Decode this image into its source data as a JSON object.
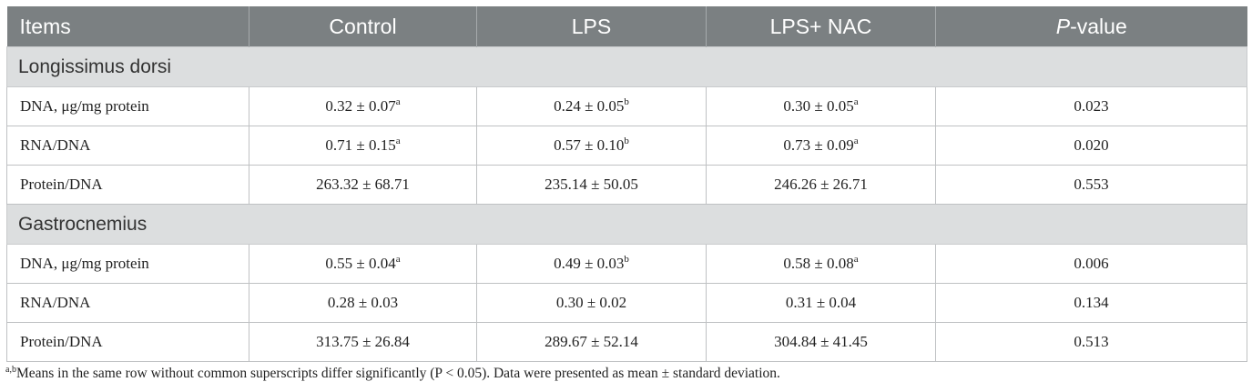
{
  "table": {
    "headers": [
      "Items",
      "Control",
      "LPS",
      "LPS+ NAC",
      "value"
    ],
    "pvalue_italic_prefix": "P",
    "pvalue_dash": "-",
    "sections": [
      {
        "title": "Longissimus dorsi",
        "rows": [
          {
            "item": "DNA, μg/mg protein",
            "control": "0.32 ± 0.07",
            "control_sup": "a",
            "lps": "0.24 ± 0.05",
            "lps_sup": "b",
            "lps_nac": "0.30 ± 0.05",
            "lps_nac_sup": "a",
            "p": "0.023"
          },
          {
            "item": "RNA/DNA",
            "control": "0.71 ± 0.15",
            "control_sup": "a",
            "lps": "0.57 ± 0.10",
            "lps_sup": "b",
            "lps_nac": "0.73 ± 0.09",
            "lps_nac_sup": "a",
            "p": "0.020"
          },
          {
            "item": "Protein/DNA",
            "control": "263.32 ± 68.71",
            "control_sup": "",
            "lps": "235.14 ± 50.05",
            "lps_sup": "",
            "lps_nac": "246.26 ± 26.71",
            "lps_nac_sup": "",
            "p": "0.553"
          }
        ]
      },
      {
        "title": "Gastrocnemius",
        "rows": [
          {
            "item": "DNA, μg/mg protein",
            "control": "0.55 ± 0.04",
            "control_sup": "a",
            "lps": "0.49 ± 0.03",
            "lps_sup": "b",
            "lps_nac": "0.58 ± 0.08",
            "lps_nac_sup": "a",
            "p": "0.006"
          },
          {
            "item": "RNA/DNA",
            "control": "0.28 ± 0.03",
            "control_sup": "",
            "lps": "0.30 ± 0.02",
            "lps_sup": "",
            "lps_nac": "0.31 ± 0.04",
            "lps_nac_sup": "",
            "p": "0.134"
          },
          {
            "item": "Protein/DNA",
            "control": "313.75 ± 26.84",
            "control_sup": "",
            "lps": "289.67 ± 52.14",
            "lps_sup": "",
            "lps_nac": "304.84 ± 41.45",
            "lps_nac_sup": "",
            "p": "0.513"
          }
        ]
      }
    ]
  },
  "footnote": {
    "sup": "a,b",
    "text": "Means in the same row without common superscripts differ significantly (P < 0.05). Data were presented as mean ± standard deviation."
  }
}
